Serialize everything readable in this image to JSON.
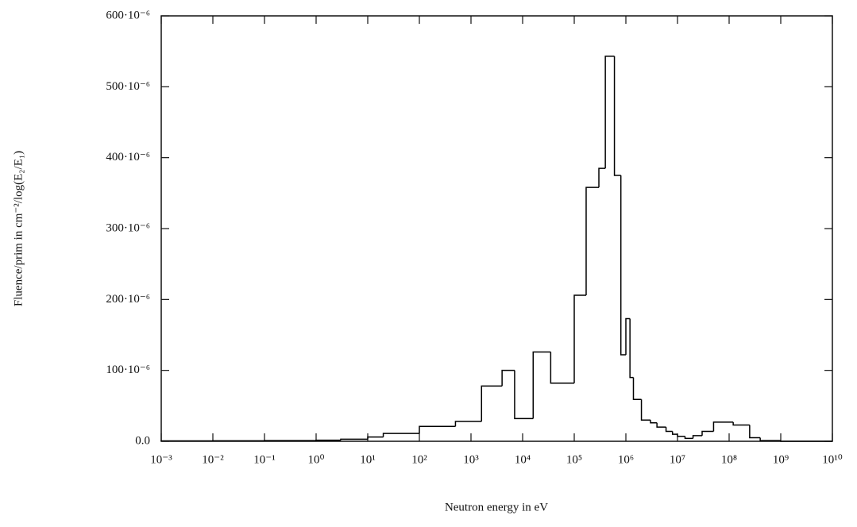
{
  "chart_data": {
    "type": "histogram",
    "x_label": "Neutron energy in eV",
    "y_label": "Fluence/prim in cm⁻²/log(E₂/E₁)",
    "xscale": "log",
    "color": "#000000",
    "bins": [
      0.001,
      0.01,
      0.1,
      1,
      3,
      10,
      20,
      100,
      500,
      1600,
      4000,
      7000,
      16000,
      35000,
      100000,
      170000,
      300000,
      400000,
      600000,
      800000,
      1000000,
      1200000,
      1400000,
      2000000,
      3000000,
      4000000,
      6000000,
      8000000,
      10000000,
      14000000,
      20000000,
      30000000,
      50000000,
      120000000,
      250000000,
      400000000,
      1000000000,
      10000000000
    ],
    "values": [
      5e-07,
      7e-07,
      1e-06,
      1.5e-06,
      3e-06,
      6e-06,
      1.1e-05,
      2.1e-05,
      2.8e-05,
      7.8e-05,
      0.0001,
      3.2e-05,
      0.000126,
      8.2e-05,
      0.000206,
      0.000358,
      0.000385,
      0.000543,
      0.000375,
      0.000122,
      0.000173,
      9e-05,
      5.9e-05,
      3e-05,
      2.6e-05,
      2e-05,
      1.4e-05,
      1e-05,
      7e-06,
      4e-06,
      8e-06,
      1.4e-05,
      2.7e-05,
      2.3e-05,
      5e-06,
      1e-06,
      0
    ],
    "xlim": [
      0.001,
      10000000000
    ],
    "xticks": [
      {
        "value": 0.001,
        "label": "10⁻³"
      },
      {
        "value": 0.01,
        "label": "10⁻²"
      },
      {
        "value": 0.1,
        "label": "10⁻¹"
      },
      {
        "value": 1,
        "label": "10⁰"
      },
      {
        "value": 10,
        "label": "10¹"
      },
      {
        "value": 100,
        "label": "10²"
      },
      {
        "value": 1000,
        "label": "10³"
      },
      {
        "value": 10000,
        "label": "10⁴"
      },
      {
        "value": 100000,
        "label": "10⁵"
      },
      {
        "value": 1000000,
        "label": "10⁶"
      },
      {
        "value": 10000000,
        "label": "10⁷"
      },
      {
        "value": 100000000,
        "label": "10⁸"
      },
      {
        "value": 1000000000,
        "label": "10⁹"
      },
      {
        "value": 10000000000,
        "label": "10¹⁰"
      }
    ],
    "ylim": [
      0,
      0.0006
    ],
    "yticks": [
      {
        "value": 0,
        "label": "0.0"
      },
      {
        "value": 0.0001,
        "label": "100·10⁻⁶"
      },
      {
        "value": 0.0002,
        "label": "200·10⁻⁶"
      },
      {
        "value": 0.0003,
        "label": "300·10⁻⁶"
      },
      {
        "value": 0.0004,
        "label": "400·10⁻⁶"
      },
      {
        "value": 0.0005,
        "label": "500·10⁻⁶"
      },
      {
        "value": 0.0006,
        "label": "600·10⁻⁶"
      }
    ]
  }
}
